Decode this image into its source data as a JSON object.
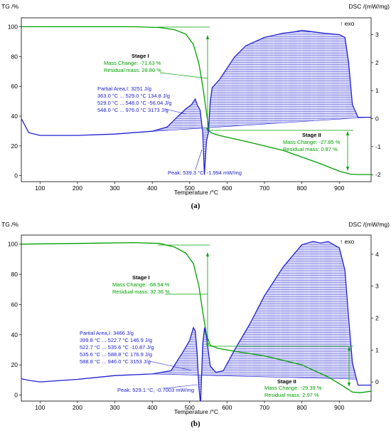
{
  "chart_data": [
    {
      "type": "line",
      "panel_label": "(a)",
      "xlabel": "Temperature /°C",
      "y_left_label": "TG /%",
      "y_right_label": "DSC /(mW/mg)",
      "exo_label": "↑ exo",
      "xlim": [
        50,
        985
      ],
      "ylim_left": [
        -4,
        106
      ],
      "ylim_right": [
        -2.25,
        3.6
      ],
      "x_ticks": [
        100,
        200,
        300,
        400,
        500,
        600,
        700,
        800,
        900
      ],
      "y_left_ticks": [
        0,
        20,
        40,
        60,
        80,
        100
      ],
      "y_right_ticks": [
        -2,
        -1,
        0,
        1,
        2,
        3
      ],
      "tg_series": {
        "name": "TG",
        "color": "#00a000",
        "x": [
          50,
          200,
          350,
          420,
          460,
          490,
          510,
          525,
          535,
          545,
          552,
          560,
          580,
          650,
          750,
          850,
          900,
          930,
          950,
          985
        ],
        "y": [
          100,
          100,
          100,
          99.5,
          98,
          95,
          88,
          75,
          60,
          42,
          30,
          28.5,
          27,
          23,
          17,
          8,
          3,
          1,
          0.8,
          0.8
        ]
      },
      "dsc_series": {
        "name": "DSC",
        "color": "#2020d0",
        "x": [
          50,
          70,
          100,
          200,
          300,
          400,
          440,
          470,
          490,
          505,
          515,
          520,
          528,
          535,
          539.3,
          545,
          550,
          555,
          560,
          580,
          620,
          650,
          700,
          750,
          780,
          800,
          830,
          860,
          900,
          915,
          925,
          935,
          950,
          985
        ],
        "y": [
          0,
          -0.5,
          -0.6,
          -0.6,
          -0.55,
          -0.45,
          -0.3,
          0.1,
          0.35,
          0.5,
          0.7,
          0.5,
          0.3,
          -0.5,
          -1.994,
          -0.8,
          -0.5,
          0.6,
          1.1,
          1.4,
          2.2,
          2.6,
          2.9,
          3.05,
          3.1,
          3.15,
          3.1,
          3.05,
          3.0,
          2.9,
          2.0,
          0.5,
          0.05,
          0.05
        ]
      },
      "stage1": {
        "title": "Stage I",
        "mass_change": "Mass Change:   -71.63 %",
        "residual": "Residual mass:   28.80 %"
      },
      "stage2": {
        "title": "Stage II",
        "mass_change": "Mass Change:   -27.85 %",
        "residual": "Residual mass:    0.87 %"
      },
      "partial_area": [
        "Partial Area,I:              3251 J/g",
        "363.0 °C ... 529.0 °C  134.8 J/g",
        "529.0 °C ... 548.0 °C  -56.04 J/g",
        "548.0 °C ... 976.0 °C  3173 J/g"
      ],
      "peak": "Peak: 539.3 °C, -1.994 mW/mg"
    },
    {
      "type": "line",
      "panel_label": "(b)",
      "xlabel": "Temperature /°C",
      "y_left_label": "TG /%",
      "y_right_label": "DSC /(mW/mg)",
      "exo_label": "↑ exo",
      "xlim": [
        50,
        985
      ],
      "ylim_left": [
        -4,
        106
      ],
      "ylim_right": [
        -0.6,
        4.6
      ],
      "x_ticks": [
        100,
        200,
        300,
        400,
        500,
        600,
        700,
        800,
        900
      ],
      "y_left_ticks": [
        0,
        20,
        40,
        60,
        80,
        100
      ],
      "y_right_ticks": [
        0,
        1,
        2,
        3,
        4
      ],
      "tg_series": {
        "name": "TG",
        "color": "#00a000",
        "x": [
          50,
          200,
          350,
          420,
          460,
          490,
          510,
          525,
          535,
          545,
          555,
          575,
          620,
          700,
          800,
          870,
          910,
          935,
          955,
          985
        ],
        "y": [
          100,
          100.5,
          101,
          100.5,
          98,
          94,
          87,
          72,
          55,
          40,
          33,
          31,
          29,
          26,
          20,
          12,
          6,
          2,
          1.5,
          2.5
        ]
      },
      "dsc_series": {
        "name": "DSC",
        "color": "#2020d0",
        "x": [
          50,
          70,
          100,
          200,
          300,
          400,
          450,
          480,
          500,
          510,
          515,
          520,
          525,
          529.1,
          535,
          540,
          545,
          555,
          570,
          590,
          620,
          660,
          700,
          750,
          800,
          830,
          850,
          870,
          900,
          915,
          925,
          935,
          950,
          985
        ],
        "y": [
          0.1,
          0.05,
          0.0,
          0.08,
          0.2,
          0.25,
          0.35,
          0.9,
          1.3,
          1.7,
          1.6,
          0.9,
          -0.2,
          -0.7003,
          1.2,
          1.7,
          1.4,
          0.5,
          0.3,
          0.35,
          1.0,
          1.8,
          2.7,
          3.6,
          4.3,
          4.4,
          4.35,
          4.4,
          4.2,
          3.5,
          2.0,
          0.6,
          -0.1,
          -0.1
        ]
      },
      "stage1": {
        "title": "Stage I",
        "mass_change": "Mass Change:   -68.54 %",
        "residual": "Residual mass:   32.36 %"
      },
      "stage2": {
        "title": "Stage II",
        "mass_change": "Mass Change:   -29.39 %",
        "residual": "Residual mass:    2.97 %"
      },
      "partial_area": [
        "Partial Area,I:              3466 J/g",
        "399.8 °C ... 522.7 °C  146.9 J/g",
        "522.7 °C ... 535.6 °C  -10.87 J/g",
        "535.6 °C ... 588.8 °C  176.9 J/g",
        "588.8 °C ... 946.0 °C  3153 J/g"
      ],
      "peak": "Peak: 529.1 °C, -0.7003 mW/mg"
    }
  ]
}
